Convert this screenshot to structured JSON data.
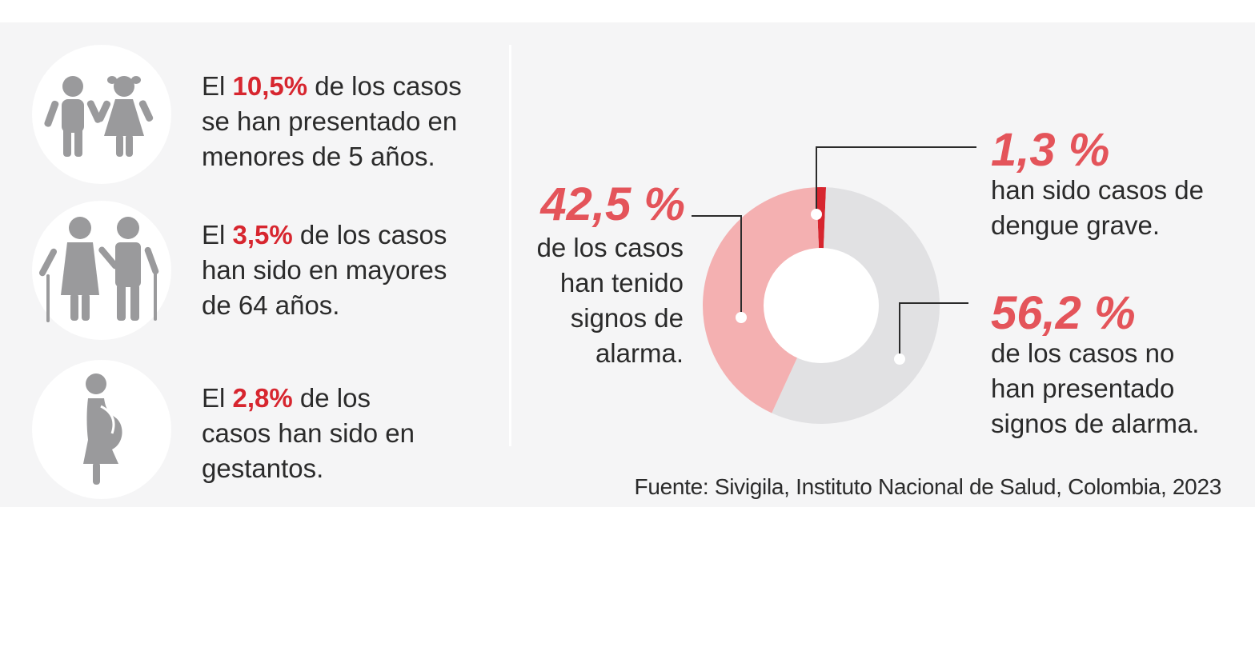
{
  "stats": [
    {
      "pre": "El ",
      "value": "10,5%",
      "line1_rest": " de los casos",
      "line2": "se han presentado en",
      "line3": "menores de 5 años.",
      "icon": "children-icon"
    },
    {
      "pre": "El ",
      "value": "3,5%",
      "line1_rest": " de los casos",
      "line2": "han sido en mayores",
      "line3": "de 64 años.",
      "icon": "elderly-couple-icon"
    },
    {
      "pre": "El ",
      "value": "2,8%",
      "line1_rest": " de los",
      "line2": "casos han sido en",
      "line3": "gestantos.",
      "icon": "pregnant-woman-icon"
    }
  ],
  "chart_data": {
    "type": "pie",
    "donut": true,
    "slices": [
      {
        "label": "han sido casos de dengue grave.",
        "value": 1.3,
        "display": "1,3 %",
        "color": "#d7262f"
      },
      {
        "label": "de los casos no han presentado signos de alarma.",
        "value": 56.2,
        "display": "56,2 %",
        "color": "#e1e1e3"
      },
      {
        "label": "de los casos han tenido signos de alarma.",
        "value": 42.5,
        "display": "42,5 %",
        "color": "#f4b0b1"
      }
    ],
    "callouts": {
      "grave": {
        "number": "1,3 %",
        "lines": [
          "han sido casos de",
          "dengue grave."
        ]
      },
      "no_alarma": {
        "number": "56,2 %",
        "lines": [
          "de los casos no",
          "han presentado",
          "signos de alarma."
        ]
      },
      "alarma": {
        "number": "42,5 %",
        "lines": [
          "de los casos",
          "han tenido",
          "signos de",
          "alarma."
        ]
      }
    }
  },
  "source": "Fuente: Sivigila, Instituto Nacional de Salud, Colombia, 2023",
  "colors": {
    "accent": "#d7262f",
    "accent_light": "#e4545a",
    "icon_gray": "#9a9a9c"
  }
}
